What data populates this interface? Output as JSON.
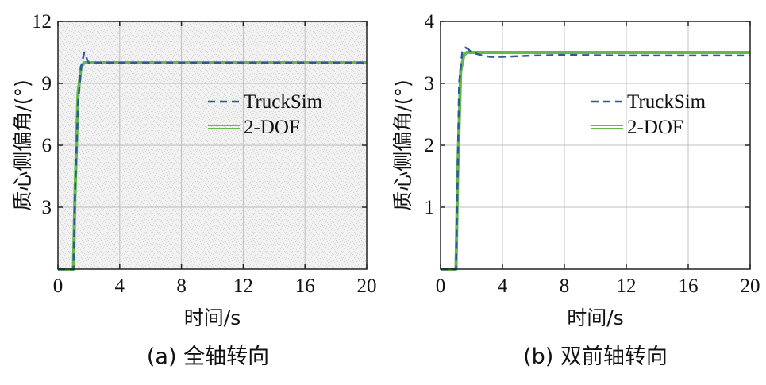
{
  "colors": {
    "truck": "#2b5a9c",
    "dof": "#67b84c",
    "grid": "#bfbfbf",
    "frame": "#222222",
    "noise": "#f1f1f1"
  },
  "chart_data": [
    {
      "type": "line",
      "caption": "(a) 全轴转向",
      "xlabel": "时间/s",
      "ylabel": "质心侧偏角/(°)",
      "xlim": [
        0,
        20
      ],
      "ylim": [
        0,
        12
      ],
      "x_ticks": [
        "0",
        "4",
        "8",
        "12",
        "16",
        "20"
      ],
      "y_ticks": [
        "3",
        "6",
        "9",
        "12"
      ],
      "grid": true,
      "legend_position": "right",
      "series": [
        {
          "name": "TruckSim",
          "style": "dashed",
          "x": [
            0,
            1.0,
            1.1,
            1.3,
            1.5,
            1.7,
            1.8,
            1.9,
            2.0,
            2.2,
            2.5,
            3,
            20
          ],
          "y": [
            0,
            0,
            3.5,
            8.0,
            9.8,
            10.5,
            10.4,
            10.1,
            10.0,
            10.0,
            10.0,
            10.0,
            10.0
          ]
        },
        {
          "name": "2-DOF",
          "style": "solid",
          "x": [
            0,
            1.0,
            1.1,
            1.3,
            1.5,
            1.7,
            2.0,
            2.5,
            20
          ],
          "y": [
            0,
            0,
            3.5,
            8.5,
            9.8,
            10.0,
            10.0,
            10.0,
            10.0
          ]
        }
      ]
    },
    {
      "type": "line",
      "caption": "(b) 双前轴转向",
      "xlabel": "时间/s",
      "ylabel": "质心侧偏角/(°)",
      "xlim": [
        0,
        20
      ],
      "ylim": [
        0,
        4
      ],
      "x_ticks": [
        "0",
        "4",
        "8",
        "12",
        "16",
        "20"
      ],
      "y_ticks": [
        "1",
        "2",
        "3",
        "4"
      ],
      "grid": true,
      "legend_position": "right",
      "series": [
        {
          "name": "TruckSim",
          "style": "dashed",
          "x": [
            0,
            1.0,
            1.1,
            1.2,
            1.4,
            1.6,
            1.8,
            2.0,
            2.3,
            2.7,
            3.2,
            4,
            6,
            8,
            12,
            16,
            20
          ],
          "y": [
            0,
            0,
            1.5,
            3.0,
            3.5,
            3.58,
            3.55,
            3.5,
            3.48,
            3.45,
            3.43,
            3.43,
            3.45,
            3.46,
            3.45,
            3.45,
            3.45
          ]
        },
        {
          "name": "2-DOF",
          "style": "solid",
          "x": [
            0,
            1.0,
            1.1,
            1.3,
            1.5,
            1.7,
            2.0,
            2.5,
            20
          ],
          "y": [
            0,
            0,
            1.5,
            3.2,
            3.45,
            3.5,
            3.5,
            3.5,
            3.5
          ]
        }
      ]
    }
  ]
}
